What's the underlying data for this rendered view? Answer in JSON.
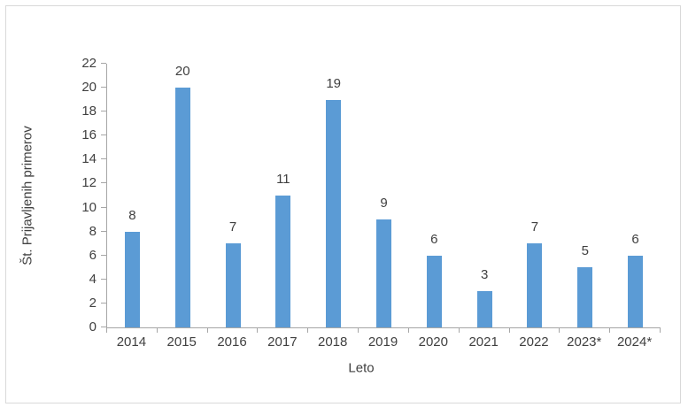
{
  "chart_data": {
    "type": "bar",
    "title": "",
    "xlabel": "Leto",
    "ylabel": "Št. Prijavljenih primerov",
    "categories": [
      "2014",
      "2015",
      "2016",
      "2017",
      "2018",
      "2019",
      "2020",
      "2021",
      "2022",
      "2023*",
      "2024*"
    ],
    "values": [
      8,
      20,
      7,
      11,
      19,
      9,
      6,
      3,
      7,
      5,
      6
    ],
    "ylim": [
      0,
      22
    ],
    "ytick_step": 2,
    "grid": false,
    "legend": "none",
    "data_labels": true,
    "colors": {
      "bar": "#5B9BD5",
      "axis": "#A6A6A6",
      "text": "#404040",
      "frame": "#D9D9D9",
      "background": "#FFFFFF"
    }
  }
}
